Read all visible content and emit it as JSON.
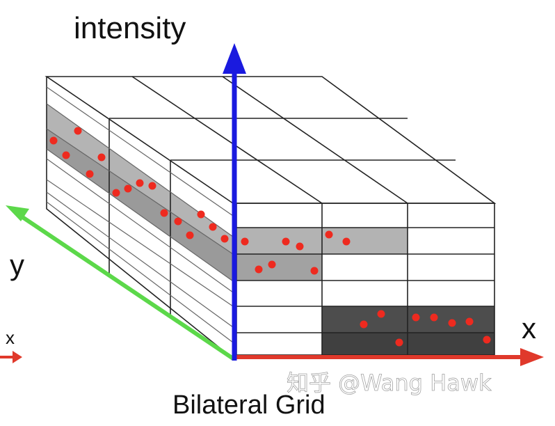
{
  "labels": {
    "intensity": "intensity",
    "y": "y",
    "x_big": "x",
    "x_small": "x",
    "caption": "Bilateral Grid",
    "watermark": "知乎 @Wang Hawk"
  },
  "colors": {
    "intensity_axis": "#1a1adf",
    "y_axis": "#5cd84a",
    "x_axis": "#e0392b",
    "points": "#ee2a1f",
    "band_light": "#b3b3b3",
    "band_mid": "#9a9a9a",
    "band_dark": "#4d4d4d",
    "band_darker": "#404040"
  }
}
